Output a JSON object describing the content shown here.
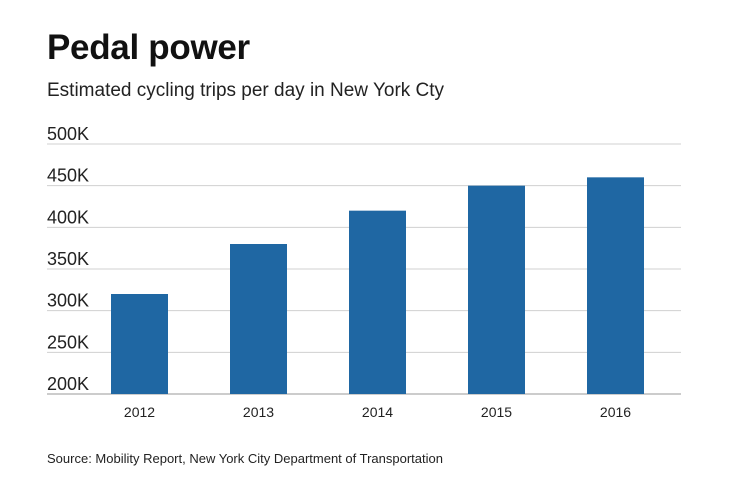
{
  "chart_data": {
    "type": "bar",
    "title": "Pedal power",
    "subtitle": "Estimated cycling trips per day in New York Cty",
    "source": "Source: Mobility Report, New York City Department of Transportation",
    "categories": [
      "2012",
      "2013",
      "2014",
      "2015",
      "2016"
    ],
    "values": [
      320000,
      380000,
      420000,
      450000,
      460000
    ],
    "ylim": [
      200000,
      500000
    ],
    "yticks": [
      200000,
      250000,
      300000,
      350000,
      400000,
      450000,
      500000
    ],
    "ytick_labels": [
      "200K",
      "250K",
      "300K",
      "350K",
      "400K",
      "450K",
      "500K"
    ],
    "xlabel": "",
    "ylabel": "",
    "grid": true,
    "legend": "none",
    "bar_color": "#1f67a3",
    "grid_color": "#d0d0d0"
  }
}
